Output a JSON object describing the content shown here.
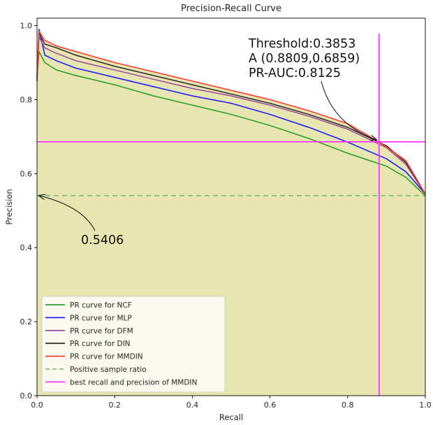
{
  "chart_data": {
    "type": "line",
    "title": "Precision-Recall Curve",
    "xlabel": "Recall",
    "ylabel": "Precision",
    "xlim": [
      0.0,
      1.0
    ],
    "ylim": [
      0.0,
      1.02
    ],
    "xticks": [
      "0.0",
      "0.2",
      "0.4",
      "0.6",
      "0.8",
      "1.0"
    ],
    "yticks": [
      "0.0",
      "0.2",
      "0.4",
      "0.6",
      "0.8",
      "1.0"
    ],
    "xtick_values": [
      0,
      0.2,
      0.4,
      0.6,
      0.8,
      1.0
    ],
    "ytick_values": [
      0,
      0.2,
      0.4,
      0.6,
      0.8,
      1.0
    ],
    "grid": false,
    "legend_position": "lower-left",
    "fill_color": "#e8e6b0",
    "series": [
      {
        "name": "PR curve for NCF",
        "color": "#2ca02c",
        "x": [
          0.0,
          0.005,
          0.02,
          0.05,
          0.1,
          0.2,
          0.3,
          0.4,
          0.5,
          0.6,
          0.7,
          0.8,
          0.9,
          0.95,
          1.0
        ],
        "y": [
          0.86,
          0.93,
          0.9,
          0.88,
          0.865,
          0.84,
          0.81,
          0.785,
          0.76,
          0.73,
          0.695,
          0.655,
          0.62,
          0.59,
          0.54
        ]
      },
      {
        "name": "PR curve for MLP",
        "color": "#1f1fff",
        "x": [
          0.0,
          0.005,
          0.02,
          0.05,
          0.1,
          0.2,
          0.3,
          0.4,
          0.5,
          0.6,
          0.7,
          0.8,
          0.9,
          0.95,
          1.0
        ],
        "y": [
          0.85,
          0.99,
          0.92,
          0.905,
          0.885,
          0.86,
          0.835,
          0.81,
          0.79,
          0.76,
          0.725,
          0.685,
          0.64,
          0.605,
          0.545
        ]
      },
      {
        "name": "PR curve for DFM",
        "color": "#9e4f9e",
        "x": [
          0.0,
          0.005,
          0.02,
          0.05,
          0.1,
          0.2,
          0.3,
          0.4,
          0.5,
          0.6,
          0.7,
          0.8,
          0.9,
          0.95,
          1.0
        ],
        "y": [
          0.86,
          0.97,
          0.94,
          0.925,
          0.905,
          0.88,
          0.855,
          0.83,
          0.81,
          0.785,
          0.755,
          0.72,
          0.67,
          0.625,
          0.545
        ]
      },
      {
        "name": "PR curve for DIN",
        "color": "#333333",
        "x": [
          0.0,
          0.005,
          0.02,
          0.05,
          0.1,
          0.2,
          0.3,
          0.4,
          0.5,
          0.6,
          0.7,
          0.8,
          0.9,
          0.95,
          1.0
        ],
        "y": [
          0.86,
          0.98,
          0.95,
          0.94,
          0.92,
          0.89,
          0.865,
          0.84,
          0.815,
          0.79,
          0.76,
          0.725,
          0.675,
          0.63,
          0.545
        ]
      },
      {
        "name": "PR curve for MMDIN",
        "color": "#ff3b2f",
        "x": [
          0.0,
          0.005,
          0.02,
          0.05,
          0.1,
          0.2,
          0.3,
          0.4,
          0.5,
          0.6,
          0.7,
          0.8,
          0.88,
          0.95,
          1.0
        ],
        "y": [
          0.86,
          0.985,
          0.96,
          0.945,
          0.93,
          0.9,
          0.875,
          0.85,
          0.825,
          0.8,
          0.77,
          0.735,
          0.686,
          0.635,
          0.545
        ]
      }
    ],
    "reference_lines": {
      "positive_ratio": {
        "name": "Positive sample ratio",
        "value": 0.5406,
        "color": "#80c080",
        "style": "dashed"
      },
      "best_point": {
        "name": "best recall and precision of MMDIN",
        "recall": 0.8809,
        "precision": 0.6859,
        "color": "#ff33ff"
      }
    },
    "annotations": {
      "best_lines": [
        "Threshold:0.3853",
        "A (0.8809,0.6859)",
        "PR-AUC:0.8125"
      ],
      "ratio_label": "0.5406"
    }
  }
}
